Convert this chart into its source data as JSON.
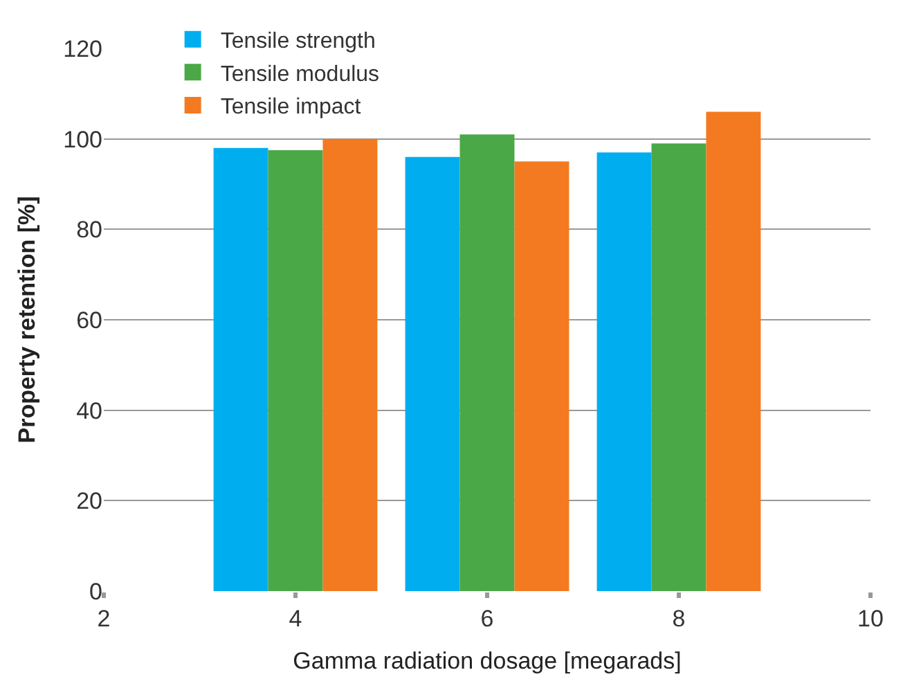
{
  "chart_data": {
    "type": "bar",
    "xlabel": "Gamma radiation dosage [megarads]",
    "ylabel": "Property retention [%]",
    "x": [
      4,
      6,
      8
    ],
    "series": [
      {
        "name": "Tensile strength",
        "color": "#00aeef",
        "values": [
          98,
          96,
          97
        ]
      },
      {
        "name": "Tensile modulus",
        "color": "#4aa847",
        "values": [
          97.5,
          101,
          99
        ]
      },
      {
        "name": "Tensile impact",
        "color": "#f37a20",
        "values": [
          100,
          95,
          106
        ]
      }
    ],
    "xlim": [
      2,
      10
    ],
    "xticks": [
      2,
      4,
      6,
      8,
      10
    ],
    "ylim": [
      0,
      120
    ],
    "yticks": [
      0,
      20,
      40,
      60,
      80,
      100,
      120
    ],
    "grid": "y",
    "legend": "top left"
  }
}
